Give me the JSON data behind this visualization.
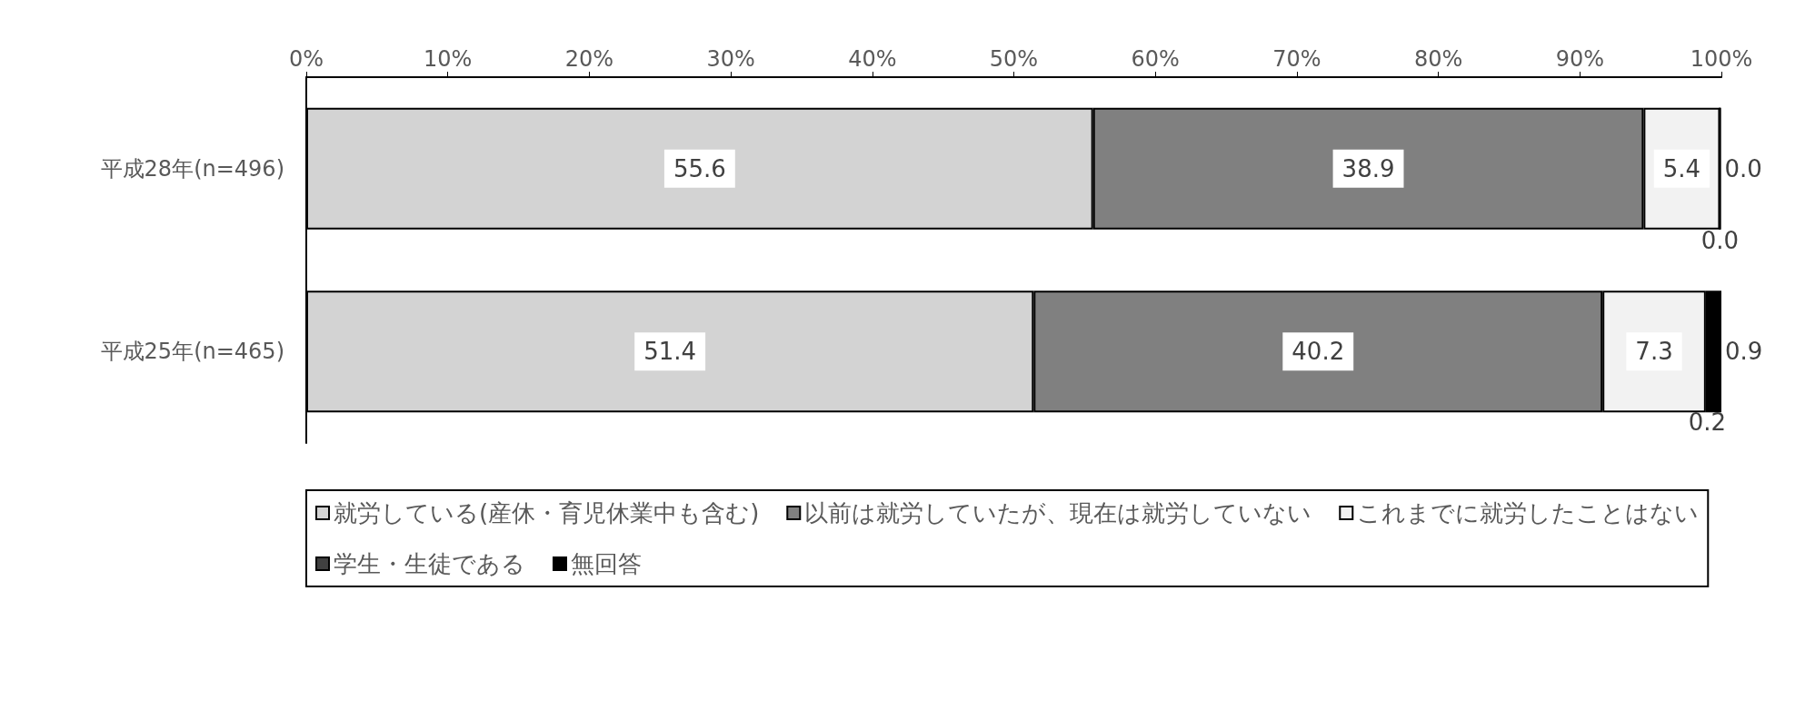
{
  "chart_data": {
    "type": "bar",
    "orientation": "horizontal",
    "stacked": true,
    "categories": [
      "平成28年(n=496)",
      "平成25年(n=465)"
    ],
    "series": [
      {
        "name": "就労している(産休・育児休業中も含む)",
        "color": "#d3d3d3",
        "values": [
          55.6,
          51.4
        ],
        "value_labels": [
          "55.6",
          "51.4"
        ]
      },
      {
        "name": "以前は就労していたが、現在は就労していない",
        "color": "#808080",
        "values": [
          38.9,
          40.2
        ],
        "value_labels": [
          "38.9",
          "40.2"
        ]
      },
      {
        "name": "これまでに就労したことはない",
        "color": "#f2f2f2",
        "values": [
          5.4,
          7.3
        ],
        "value_labels": [
          "5.4",
          "7.3"
        ]
      },
      {
        "name": "学生・生徒である",
        "color": "#404040",
        "values": [
          0.0,
          0.2
        ],
        "value_labels": [
          "0.0",
          "0.2"
        ]
      },
      {
        "name": "無回答",
        "color": "#000000",
        "values": [
          0.0,
          0.9
        ],
        "value_labels": [
          "0.0",
          "0.9"
        ]
      }
    ],
    "xlim": [
      0,
      100
    ],
    "xticks": [
      {
        "value": 0,
        "label": "0%"
      },
      {
        "value": 10,
        "label": "10%"
      },
      {
        "value": 20,
        "label": "20%"
      },
      {
        "value": 30,
        "label": "30%"
      },
      {
        "value": 40,
        "label": "40%"
      },
      {
        "value": 50,
        "label": "50%"
      },
      {
        "value": 60,
        "label": "60%"
      },
      {
        "value": 70,
        "label": "70%"
      },
      {
        "value": 80,
        "label": "80%"
      },
      {
        "value": 90,
        "label": "90%"
      },
      {
        "value": 100,
        "label": "100%"
      }
    ],
    "grid": false,
    "legend": "bottom"
  }
}
